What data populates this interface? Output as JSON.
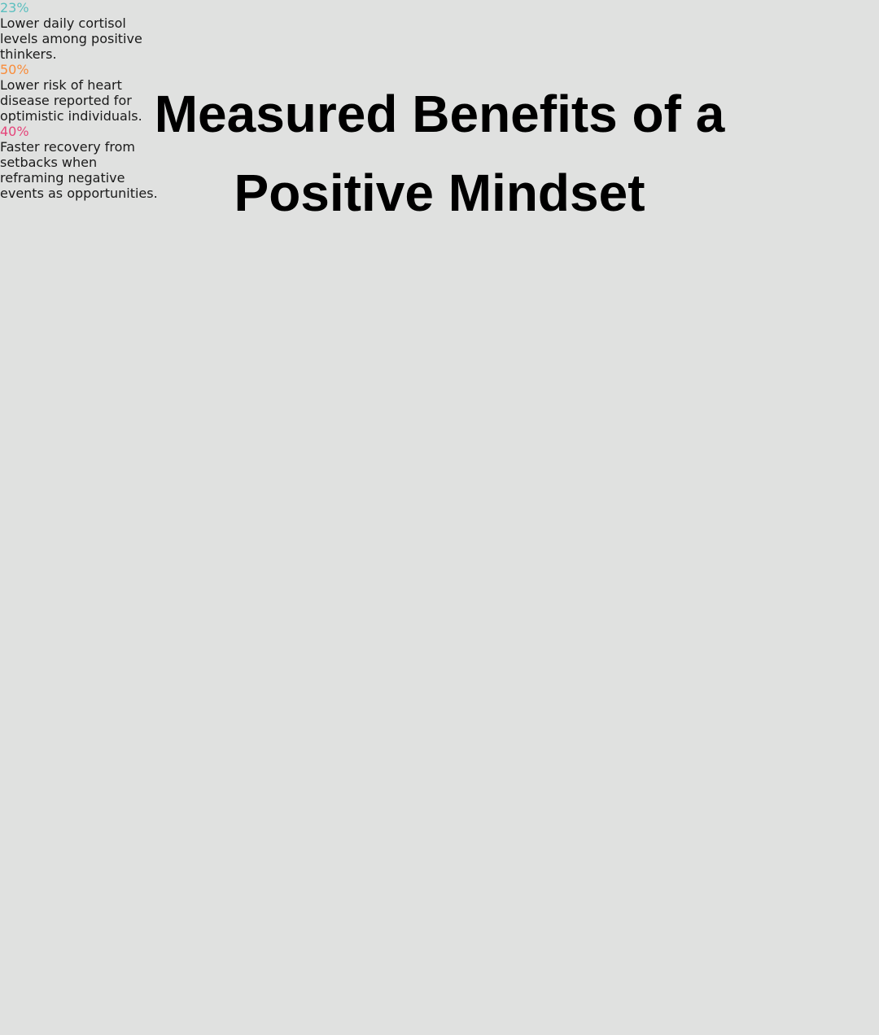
{
  "header": {
    "title": "Measured Benefits of a Positive Mindset"
  },
  "stats": [
    {
      "value": "23%",
      "color": "#5bbfbf",
      "description": [
        "Lower daily cortisol",
        "levels among positive",
        "thinkers."
      ]
    },
    {
      "value": "50%",
      "color": "#f98c3a",
      "description": [
        "Lower risk of heart",
        "disease reported for",
        "optimistic individuals."
      ]
    },
    {
      "value": "40%",
      "color": "#e5457a",
      "description": [
        "Faster recovery from",
        "setbacks when",
        "reframing negative",
        "events as opportunities."
      ]
    }
  ]
}
